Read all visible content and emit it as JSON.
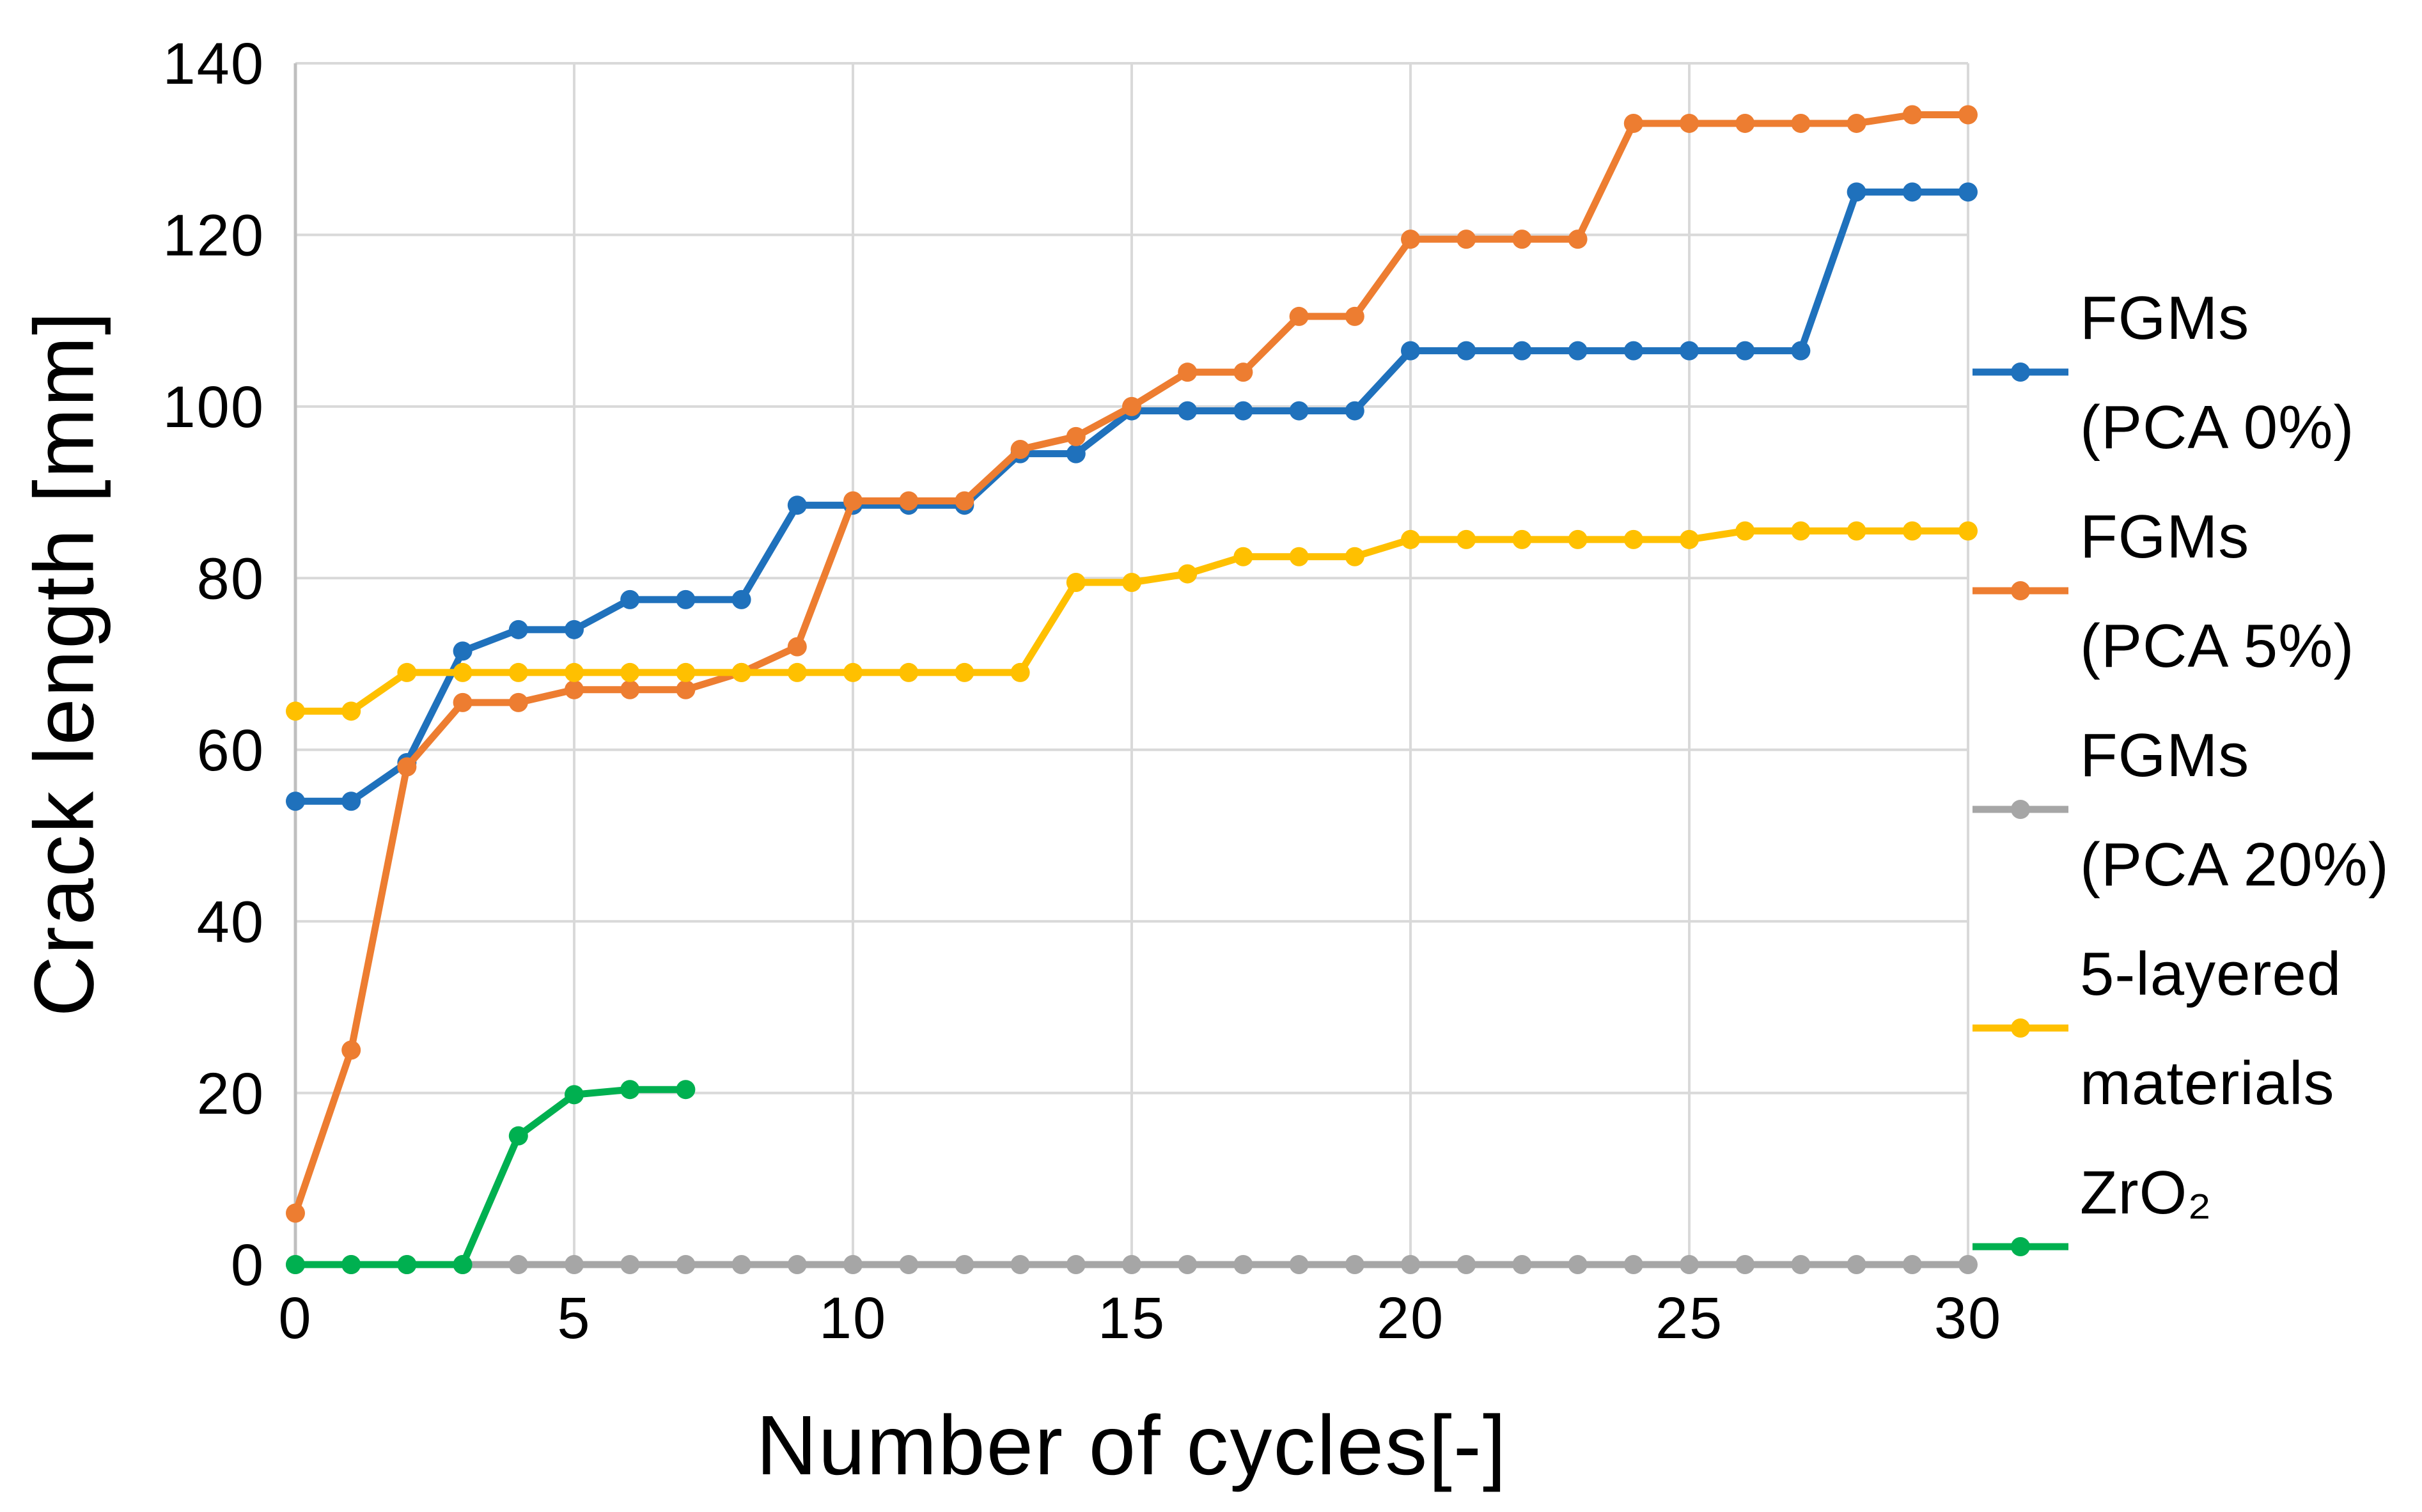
{
  "chart_data": {
    "type": "line",
    "title": "",
    "xlabel": "Number of cycles[-]",
    "ylabel": "Crack length [mm]",
    "xlim": [
      0,
      30
    ],
    "ylim": [
      0,
      140
    ],
    "x_ticks": [
      0,
      5,
      10,
      15,
      20,
      25,
      30
    ],
    "y_ticks": [
      0,
      20,
      40,
      60,
      80,
      100,
      120,
      140
    ],
    "grid": true,
    "legend_position": "right",
    "grid_color": "#D9D9D9",
    "axis_line_color": "#BFBFBF",
    "series": [
      {
        "name": "FGMs (PCA 0%)",
        "legend_lines": [
          "FGMs",
          "(PCA 0%)"
        ],
        "color": "#1F71BC",
        "x": [
          0,
          1,
          2,
          3,
          4,
          5,
          6,
          7,
          8,
          9,
          10,
          11,
          12,
          13,
          14,
          15,
          16,
          17,
          18,
          19,
          20,
          21,
          22,
          23,
          24,
          25,
          26,
          27,
          28,
          29,
          30
        ],
        "values": [
          54,
          54,
          58.5,
          71.5,
          74,
          74,
          77.5,
          77.5,
          77.5,
          88.5,
          88.5,
          88.5,
          88.5,
          94.5,
          94.5,
          99.5,
          99.5,
          99.5,
          99.5,
          99.5,
          106.5,
          106.5,
          106.5,
          106.5,
          106.5,
          106.5,
          106.5,
          106.5,
          125,
          125,
          125
        ]
      },
      {
        "name": "FGMs (PCA 5%)",
        "legend_lines": [
          "FGMs",
          "(PCA 5%)"
        ],
        "color": "#ED7D31",
        "x": [
          0,
          1,
          2,
          3,
          4,
          5,
          6,
          7,
          8,
          9,
          10,
          11,
          12,
          13,
          14,
          15,
          16,
          17,
          18,
          19,
          20,
          21,
          22,
          23,
          24,
          25,
          26,
          27,
          28,
          29,
          30
        ],
        "values": [
          6,
          25,
          58,
          65.5,
          65.5,
          67,
          67,
          67,
          69,
          72,
          89,
          89,
          89,
          95,
          96.5,
          100,
          104,
          104,
          110.5,
          110.5,
          119.5,
          119.5,
          119.5,
          119.5,
          133,
          133,
          133,
          133,
          133,
          134,
          134
        ]
      },
      {
        "name": "FGMs (PCA 20%)",
        "legend_lines": [
          "FGMs",
          "(PCA 20%)"
        ],
        "color": "#A6A6A6",
        "x": [
          0,
          1,
          2,
          3,
          4,
          5,
          6,
          7,
          8,
          9,
          10,
          11,
          12,
          13,
          14,
          15,
          16,
          17,
          18,
          19,
          20,
          21,
          22,
          23,
          24,
          25,
          26,
          27,
          28,
          29,
          30
        ],
        "values": [
          0,
          0,
          0,
          0,
          0,
          0,
          0,
          0,
          0,
          0,
          0,
          0,
          0,
          0,
          0,
          0,
          0,
          0,
          0,
          0,
          0,
          0,
          0,
          0,
          0,
          0,
          0,
          0,
          0,
          0,
          0
        ]
      },
      {
        "name": "5-layered materials",
        "legend_lines": [
          "5-layered",
          "materials"
        ],
        "color": "#FFC000",
        "x": [
          0,
          1,
          2,
          3,
          4,
          5,
          6,
          7,
          8,
          9,
          10,
          11,
          12,
          13,
          14,
          15,
          16,
          17,
          18,
          19,
          20,
          21,
          22,
          23,
          24,
          25,
          26,
          27,
          28,
          29,
          30
        ],
        "values": [
          64.5,
          64.5,
          69,
          69,
          69,
          69,
          69,
          69,
          69,
          69,
          69,
          69,
          69,
          69,
          79.5,
          79.5,
          80.5,
          82.5,
          82.5,
          82.5,
          84.5,
          84.5,
          84.5,
          84.5,
          84.5,
          84.5,
          85.5,
          85.5,
          85.5,
          85.5,
          85.5
        ]
      },
      {
        "name": "ZrO₂",
        "legend_lines": [
          "ZrO₂"
        ],
        "color": "#00B050",
        "x": [
          0,
          1,
          2,
          3,
          4,
          5,
          6,
          7
        ],
        "values": [
          0,
          0,
          0,
          0,
          15,
          19.8,
          20.4,
          20.4
        ]
      }
    ]
  }
}
